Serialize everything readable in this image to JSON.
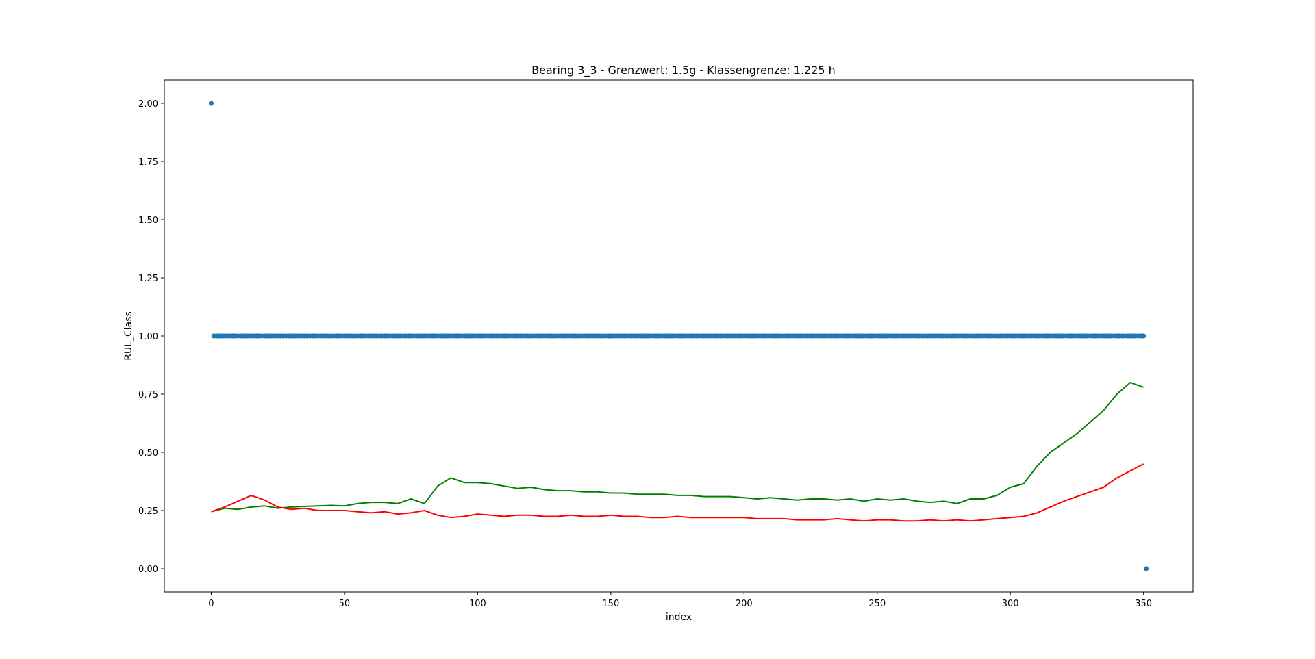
{
  "chart_data": {
    "type": "scatter+line",
    "title": "Bearing 3_3 - Grenzwert: 1.5g - Klassengrenze: 1.225 h",
    "xlabel": "index",
    "ylabel": "RUL_Class",
    "xlim": [
      -17.6,
      368.6
    ],
    "ylim": [
      -0.1,
      2.1
    ],
    "xticks": [
      0,
      50,
      100,
      150,
      200,
      250,
      300,
      350
    ],
    "xtick_labels": [
      "0",
      "50",
      "100",
      "150",
      "200",
      "250",
      "300",
      "350"
    ],
    "yticks": [
      0.0,
      0.25,
      0.5,
      0.75,
      1.0,
      1.25,
      1.5,
      1.75,
      2.0
    ],
    "ytick_labels": [
      "0.00",
      "0.25",
      "0.50",
      "0.75",
      "1.00",
      "1.25",
      "1.50",
      "1.75",
      "2.00"
    ],
    "grid": false,
    "legend": "none",
    "scatter": {
      "color": "#1f77b4",
      "description": "RUL_Class per index",
      "points": [
        [
          0,
          2.0
        ],
        [
          351,
          0.0
        ]
      ],
      "constant_run": {
        "x_start": 1,
        "x_end": 350,
        "y": 1.0
      }
    },
    "lines": [
      {
        "color": "#008000",
        "x_step": 5,
        "y": [
          0.245,
          0.26,
          0.255,
          0.265,
          0.27,
          0.26,
          0.265,
          0.268,
          0.27,
          0.272,
          0.27,
          0.28,
          0.285,
          0.285,
          0.28,
          0.3,
          0.28,
          0.355,
          0.39,
          0.37,
          0.37,
          0.365,
          0.355,
          0.345,
          0.35,
          0.34,
          0.335,
          0.335,
          0.33,
          0.33,
          0.325,
          0.325,
          0.32,
          0.32,
          0.32,
          0.315,
          0.315,
          0.31,
          0.31,
          0.31,
          0.305,
          0.3,
          0.305,
          0.3,
          0.295,
          0.3,
          0.3,
          0.295,
          0.3,
          0.29,
          0.3,
          0.295,
          0.3,
          0.29,
          0.285,
          0.29,
          0.28,
          0.3,
          0.3,
          0.315,
          0.35,
          0.365,
          0.44,
          0.5,
          0.54,
          0.58,
          0.63,
          0.68,
          0.75,
          0.8,
          0.78
        ]
      },
      {
        "color": "#ff0000",
        "x_step": 5,
        "y": [
          0.245,
          0.265,
          0.29,
          0.315,
          0.295,
          0.265,
          0.255,
          0.26,
          0.25,
          0.25,
          0.25,
          0.245,
          0.24,
          0.245,
          0.235,
          0.24,
          0.25,
          0.23,
          0.22,
          0.225,
          0.235,
          0.23,
          0.225,
          0.23,
          0.23,
          0.225,
          0.225,
          0.23,
          0.225,
          0.225,
          0.23,
          0.225,
          0.225,
          0.22,
          0.22,
          0.225,
          0.22,
          0.22,
          0.22,
          0.22,
          0.22,
          0.215,
          0.215,
          0.215,
          0.21,
          0.21,
          0.21,
          0.215,
          0.21,
          0.205,
          0.21,
          0.21,
          0.205,
          0.205,
          0.21,
          0.205,
          0.21,
          0.205,
          0.21,
          0.215,
          0.22,
          0.225,
          0.24,
          0.265,
          0.29,
          0.31,
          0.33,
          0.35,
          0.39,
          0.42,
          0.45
        ]
      }
    ]
  }
}
